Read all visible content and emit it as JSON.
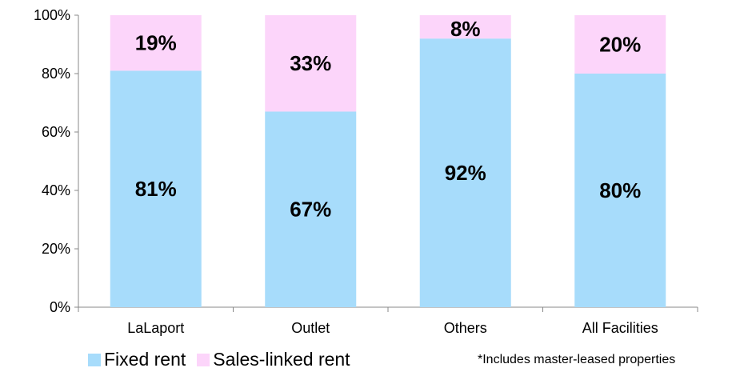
{
  "chart_data": {
    "type": "bar",
    "stacked": true,
    "categories": [
      "LaLaport",
      "Outlet",
      "Others",
      "All Facilities"
    ],
    "series": [
      {
        "name": "Fixed rent",
        "values": [
          81,
          67,
          92,
          80
        ],
        "labels": [
          "81%",
          "67%",
          "92%",
          "80%"
        ],
        "color": "#a7dcfb"
      },
      {
        "name": "Sales-linked rent",
        "values": [
          19,
          33,
          8,
          20
        ],
        "labels": [
          "19%",
          "33%",
          "8%",
          "20%"
        ],
        "color": "#fcd5fa"
      }
    ],
    "ylim": [
      0,
      100
    ],
    "yticks": [
      0,
      20,
      40,
      60,
      80,
      100
    ],
    "ytick_labels": [
      "0%",
      "20%",
      "40%",
      "60%",
      "80%",
      "100%"
    ],
    "grid": false,
    "legend_position": "bottom-left"
  },
  "footnote": "*Includes master-leased properties"
}
